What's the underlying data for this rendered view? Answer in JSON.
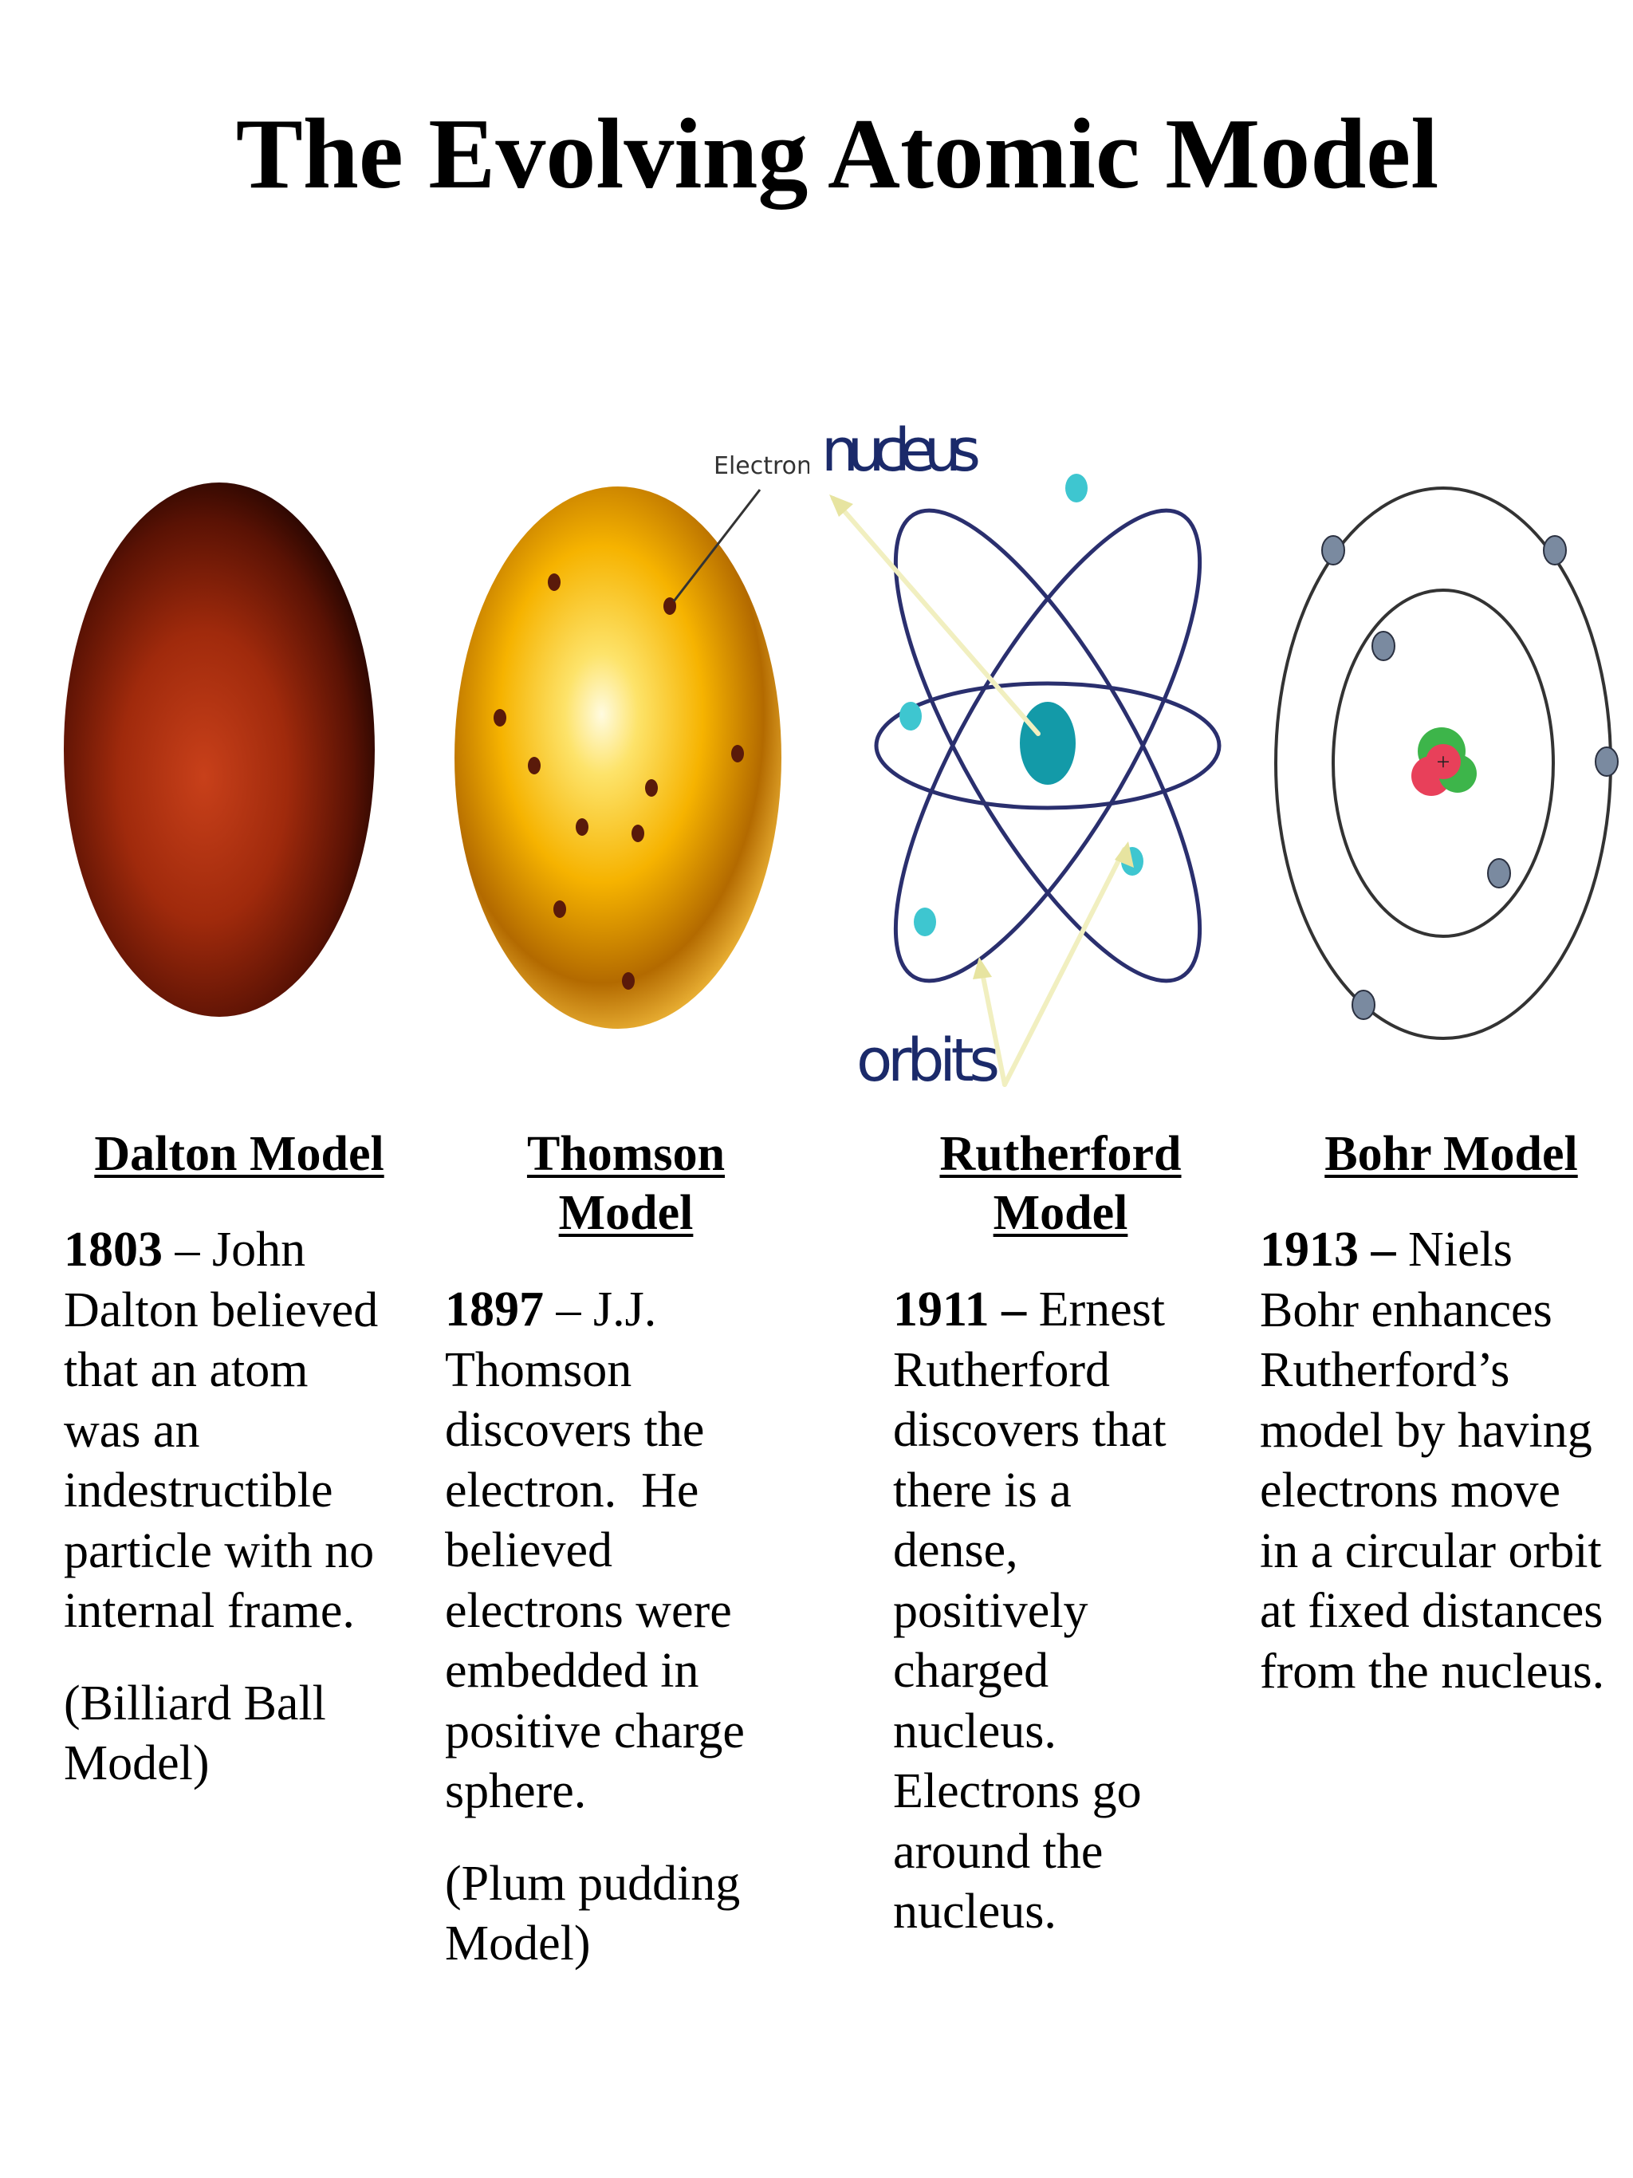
{
  "title": "The Evolving Atomic Model",
  "figures": {
    "thomson": {
      "label": "Electron"
    },
    "rutherford": {
      "nucleus_label": "nucleus",
      "orbits_label": "orbits"
    }
  },
  "models": [
    {
      "heading": "Dalton Model",
      "year": "1803",
      "dash": " – ",
      "lines": [
        "John",
        "Dalton believed",
        "that an atom",
        "was an",
        "indestructible",
        "particle with no",
        "internal frame."
      ],
      "note": [
        "(Billiard Ball",
        "Model)"
      ]
    },
    {
      "heading_lines": [
        "Thomson",
        "Model"
      ],
      "year": "1897",
      "dash": " – ",
      "lines": [
        "J.J.",
        "Thomson",
        "discovers the",
        "electron.  He",
        "believed",
        "electrons were",
        "embedded in",
        "positive charge",
        "sphere."
      ],
      "note": [
        "(Plum pudding",
        "Model)"
      ]
    },
    {
      "heading_lines": [
        "Rutherford",
        "Model"
      ],
      "year": "1911 –",
      "dash": " ",
      "lines": [
        "Ernest",
        "Rutherford",
        "discovers that",
        "there is a",
        "dense,",
        "positively",
        "charged",
        "nucleus.",
        "Electrons go",
        "around the",
        "nucleus."
      ]
    },
    {
      "heading": "Bohr Model",
      "year": "1913 –",
      "dash": " ",
      "lines": [
        "Niels",
        "Bohr enhances",
        "Rutherford’s",
        "model by having",
        "electrons move",
        "in a circular orbit",
        "at fixed distances",
        "from the nucleus."
      ]
    }
  ],
  "colors": {
    "dalton_center": "#c23a12",
    "dalton_edge": "#2a0500",
    "thomson_center": "#fffbe0",
    "thomson_mid": "#f7b000",
    "orbit_blue": "#2a2f6e",
    "nucleus_teal": "#139aa8",
    "arrow_yellow": "#f1efc0"
  }
}
